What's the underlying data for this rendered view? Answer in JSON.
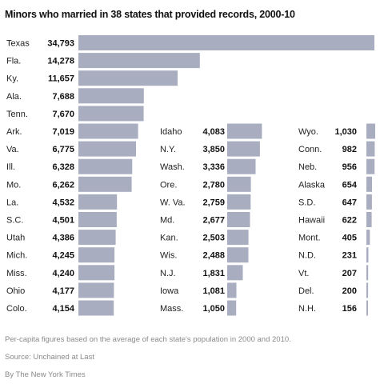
{
  "title": "Minors who married in 38 states that provided records, 2000-10",
  "footnote": "Per-capita figures based on the average of each state's population in 2000 and 2010.",
  "source": "Source: Unchained at Last",
  "credit": "By The New York Times",
  "colors": {
    "bar": "#a9adc0",
    "text": "#222222",
    "note": "#8a8a8a"
  },
  "chart_data": {
    "type": "bar",
    "orientation": "horizontal",
    "title": "Minors who married in 38 states that provided records, 2000-10",
    "columns": [
      {
        "states": [
          "Texas",
          "Fla.",
          "Ky.",
          "Ala.",
          "Tenn.",
          "Ark.",
          "Va.",
          "Ill.",
          "Mo.",
          "La.",
          "S.C.",
          "Utah",
          "Mich.",
          "Miss.",
          "Ohio",
          "Colo."
        ],
        "labels": [
          "34,793",
          "14,278",
          "11,657",
          "7,688",
          "7,670",
          "7,019",
          "6,775",
          "6,328",
          "6,262",
          "4,532",
          "4,501",
          "4,386",
          "4,245",
          "4,240",
          "4,177",
          "4,154"
        ],
        "values": [
          34793,
          14278,
          11657,
          7688,
          7670,
          7019,
          6775,
          6328,
          6262,
          4532,
          4501,
          4386,
          4245,
          4240,
          4177,
          4154
        ]
      },
      {
        "states": [
          "Idaho",
          "N.Y.",
          "Wash.",
          "Ore.",
          "W. Va.",
          "Md.",
          "Kan.",
          "Wis.",
          "N.J.",
          "Iowa",
          "Mass."
        ],
        "labels": [
          "4,083",
          "3,850",
          "3,336",
          "2,780",
          "2,759",
          "2,677",
          "2,503",
          "2,488",
          "1,831",
          "1,081",
          "1,050"
        ],
        "values": [
          4083,
          3850,
          3336,
          2780,
          2759,
          2677,
          2503,
          2488,
          1831,
          1081,
          1050
        ]
      },
      {
        "states": [
          "Wyo.",
          "Conn.",
          "Neb.",
          "Alaska",
          "S.D.",
          "Hawaii",
          "Mont.",
          "N.D.",
          "Vt.",
          "Del.",
          "N.H."
        ],
        "labels": [
          "1,030",
          "982",
          "956",
          "654",
          "647",
          "622",
          "405",
          "231",
          "207",
          "200",
          "156"
        ],
        "values": [
          1030,
          982,
          956,
          654,
          647,
          622,
          405,
          231,
          207,
          200,
          156
        ]
      }
    ]
  }
}
